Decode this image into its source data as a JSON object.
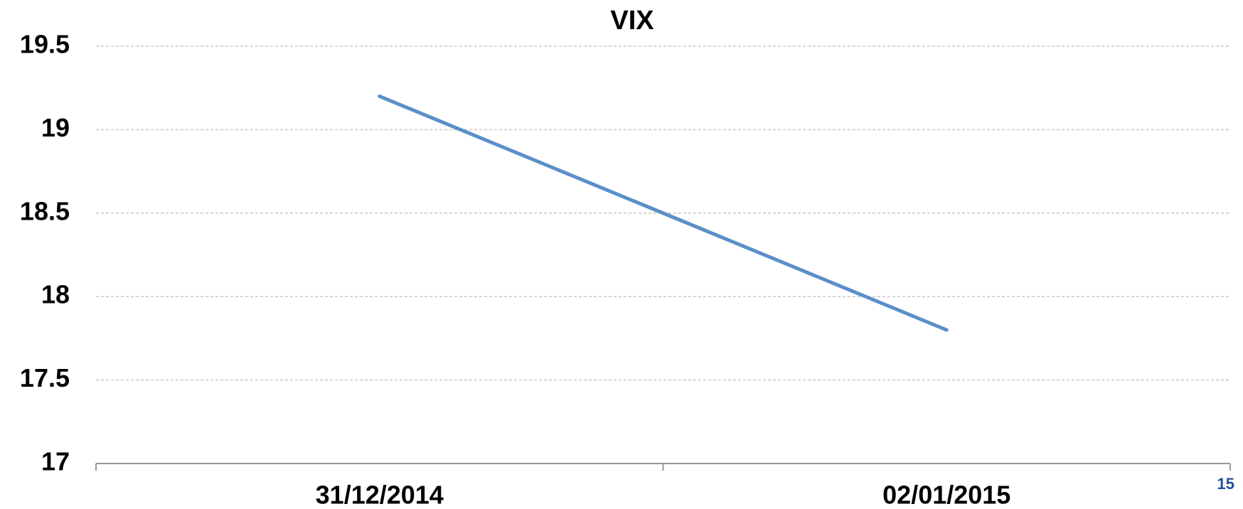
{
  "chart_data": {
    "type": "line",
    "title": "VIX",
    "categories": [
      "31/12/2014",
      "02/01/2015"
    ],
    "series": [
      {
        "name": "VIX",
        "color": "#5b8fc9",
        "values": [
          19.2,
          17.8
        ]
      }
    ],
    "ylim": [
      17,
      19.5
    ],
    "yticks": [
      17,
      17.5,
      18,
      18.5,
      19,
      19.5
    ],
    "grid": true,
    "page_number": "15"
  }
}
